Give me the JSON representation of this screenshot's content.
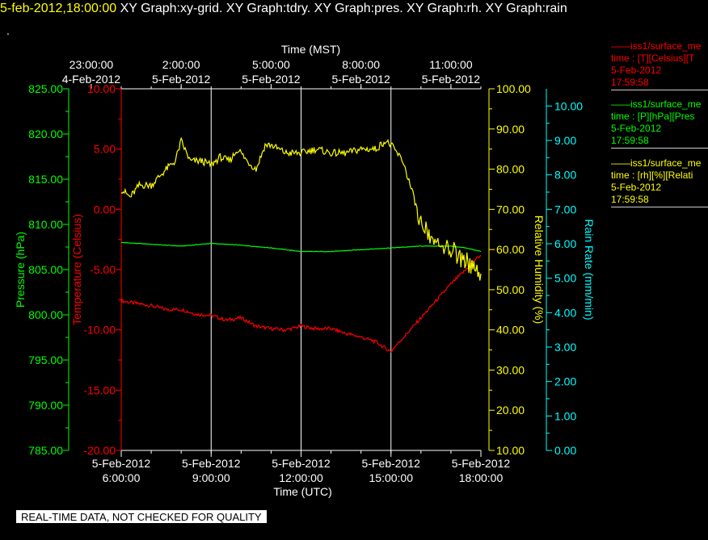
{
  "header": {
    "timestamp": "5-feb-2012,18:00:00",
    "titles": "XY Graph:xy-grid.  XY Graph:tdry.  XY Graph:pres.  XY Graph:rh.  XY Graph:rain"
  },
  "dot": ".",
  "legend": [
    {
      "title": "iss1/surface_me",
      "line1": "time : [T][Celsius][T",
      "line2": "5-Feb-2012",
      "line3": "17:59:58",
      "color": "#ff0000"
    },
    {
      "title": "iss1/surface_me",
      "line1": "time : [P][hPa][Pres",
      "line2": "5-Feb-2012",
      "line3": "17:59:58",
      "color": "#00ff00"
    },
    {
      "title": "iss1/surface_me",
      "line1": "time : [rh][%][Relati",
      "line2": "5-Feb-2012",
      "line3": "17:59:58",
      "color": "#ffff00"
    }
  ],
  "footer": {
    "warning": "REAL-TIME DATA, NOT CHECKED FOR QUALITY"
  },
  "chart_data": {
    "type": "line",
    "top_axis": {
      "title": "Time (MST)",
      "ticks": [
        {
          "t": 5,
          "line1": "23:00:00",
          "line2": "4-Feb-2012"
        },
        {
          "t": 8,
          "line1": "2:00:00",
          "line2": "5-Feb-2012"
        },
        {
          "t": 11,
          "line1": "5:00:00",
          "line2": "5-Feb-2012"
        },
        {
          "t": 14,
          "line1": "8:00:00",
          "line2": "5-Feb-2012"
        },
        {
          "t": 17,
          "line1": "11:00:00",
          "line2": "5-Feb-2012"
        }
      ]
    },
    "bottom_axis": {
      "title": "Time (UTC)",
      "range": [
        6,
        18
      ],
      "ticks": [
        {
          "t": 6,
          "line1": "5-Feb-2012",
          "line2": "6:00:00"
        },
        {
          "t": 9,
          "line1": "5-Feb-2012",
          "line2": "9:00:00"
        },
        {
          "t": 12,
          "line1": "5-Feb-2012",
          "line2": "12:00:00"
        },
        {
          "t": 15,
          "line1": "5-Feb-2012",
          "line2": "15:00:00"
        },
        {
          "t": 18,
          "line1": "5-Feb-2012",
          "line2": "18:00:00"
        }
      ]
    },
    "grid": {
      "vertical_at": [
        9,
        12,
        15
      ]
    },
    "axes": {
      "pressure": {
        "label": "Pressure (hPa)",
        "range": [
          785,
          825
        ],
        "ticks": [
          "785.00",
          "790.00",
          "795.00",
          "800.00",
          "805.00",
          "810.00",
          "815.00",
          "820.00",
          "825.00"
        ],
        "color": "#00ff00"
      },
      "temperature": {
        "label": "Temperature (Celsius)",
        "range": [
          -20,
          10
        ],
        "ticks": [
          "-20.00",
          "-15.00",
          "-10.00",
          "-5.00",
          "0.00",
          "5.00",
          "10.00"
        ],
        "color": "#ff0000"
      },
      "humidity": {
        "label": "Relative Humidity (%)",
        "range": [
          10,
          100
        ],
        "ticks": [
          "10.00",
          "20.00",
          "30.00",
          "40.00",
          "50.00",
          "60.00",
          "70.00",
          "80.00",
          "90.00",
          "100.00"
        ],
        "color": "#ffff00"
      },
      "rain": {
        "label": "Rain Rate (mm/min)",
        "range": [
          0,
          10.5
        ],
        "ticks": [
          "0.00",
          "1.00",
          "2.00",
          "3.00",
          "4.00",
          "5.00",
          "6.00",
          "7.00",
          "8.00",
          "9.00",
          "10.00"
        ],
        "color": "#00ffff"
      }
    },
    "series": [
      {
        "axis": "temperature",
        "color": "#ff0000",
        "x": [
          6.0,
          6.5,
          7.0,
          7.5,
          8.0,
          8.5,
          9.0,
          9.5,
          10.0,
          10.5,
          11.0,
          11.5,
          12.0,
          12.5,
          13.0,
          13.5,
          14.0,
          14.5,
          14.8,
          15.0,
          15.2,
          15.5,
          16.0,
          16.5,
          17.0,
          17.5,
          17.8,
          18.0
        ],
        "y": [
          -7.6,
          -7.8,
          -8.0,
          -8.3,
          -8.3,
          -8.7,
          -8.8,
          -9.2,
          -9.0,
          -9.7,
          -9.9,
          -10.0,
          -9.7,
          -9.9,
          -9.9,
          -10.3,
          -10.6,
          -11.0,
          -11.5,
          -11.8,
          -11.2,
          -10.4,
          -9.0,
          -7.6,
          -6.2,
          -5.0,
          -4.2,
          -3.8
        ]
      },
      {
        "axis": "pressure",
        "color": "#00ff00",
        "x": [
          6.0,
          7.0,
          8.0,
          9.0,
          10.0,
          11.0,
          12.0,
          13.0,
          14.0,
          15.0,
          16.0,
          17.0,
          17.5,
          18.0
        ],
        "y": [
          808.0,
          807.8,
          807.6,
          807.9,
          807.7,
          807.4,
          807.0,
          807.0,
          807.2,
          807.4,
          807.6,
          807.6,
          807.4,
          807.0
        ]
      },
      {
        "axis": "humidity",
        "color": "#ffff00",
        "x": [
          6.0,
          6.3,
          6.6,
          7.0,
          7.5,
          7.8,
          8.0,
          8.3,
          8.7,
          9.0,
          9.3,
          9.6,
          9.9,
          10.2,
          10.5,
          10.8,
          11.0,
          11.5,
          12.0,
          12.5,
          13.0,
          13.5,
          14.0,
          14.5,
          14.8,
          15.0,
          15.2,
          15.4,
          15.6,
          15.8,
          16.0,
          16.3,
          16.6,
          17.0,
          17.5,
          18.0
        ],
        "y": [
          75,
          73,
          76,
          76,
          80,
          82,
          87,
          82,
          82,
          81,
          83,
          82,
          85,
          82,
          80,
          86,
          86,
          84,
          84,
          85,
          84,
          84,
          85,
          85,
          87,
          86,
          84,
          82,
          77,
          72,
          66,
          63,
          62,
          60,
          57,
          54
        ]
      },
      {
        "axis": "rain",
        "color": "#00ffff",
        "x": [],
        "y": []
      }
    ]
  }
}
